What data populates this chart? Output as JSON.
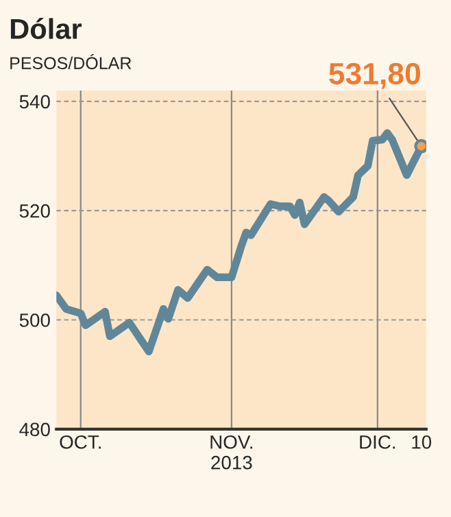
{
  "chart_data": {
    "type": "line",
    "title": "Dólar",
    "ylabel": "PESOS/DÓLAR",
    "x": [
      "2013-09-26",
      "2013-09-28",
      "2013-10-01",
      "2013-10-02",
      "2013-10-06",
      "2013-10-07",
      "2013-10-11",
      "2013-10-15",
      "2013-10-18",
      "2013-10-19",
      "2013-10-21",
      "2013-10-23",
      "2013-10-27",
      "2013-10-29",
      "2013-11-01",
      "2013-11-03",
      "2013-11-04",
      "2013-11-05",
      "2013-11-09",
      "2013-11-11",
      "2013-11-13",
      "2013-11-14",
      "2013-11-15",
      "2013-11-16",
      "2013-11-20",
      "2013-11-21",
      "2013-11-23",
      "2013-11-26",
      "2013-11-27",
      "2013-11-29",
      "2013-11-30",
      "2013-12-02",
      "2013-12-03",
      "2013-12-04",
      "2013-12-07",
      "2013-12-10"
    ],
    "series": [
      {
        "color": "#5f8799",
        "values": [
          504.5,
          502,
          501.2,
          499,
          501.5,
          497,
          499.5,
          494.2,
          502,
          500.2,
          505.5,
          504,
          509.2,
          507.8,
          507.8,
          513.5,
          516,
          515.5,
          521.2,
          520.8,
          520.8,
          519.2,
          521.5,
          517.5,
          522.5,
          521.8,
          519.8,
          522.5,
          526.5,
          528.2,
          532.8,
          533,
          534.2,
          533,
          526.5,
          531.8
        ]
      }
    ],
    "xlim": [
      "2013-09-26",
      "2013-12-11"
    ],
    "xticks": [
      {
        "value": "2013-10-01",
        "label": "OCT."
      },
      {
        "value": "2013-11-01",
        "label": "NOV.\n2013"
      },
      {
        "value": "2013-12-01",
        "label": "DIC."
      },
      {
        "value": "2013-12-10",
        "label": "10"
      }
    ],
    "ylim": [
      480,
      542
    ],
    "yticks": [
      480,
      500,
      520,
      540
    ],
    "grid": true,
    "annotations": [
      {
        "text": "531,80",
        "x": "2013-12-10",
        "y": 531.8
      }
    ]
  }
}
